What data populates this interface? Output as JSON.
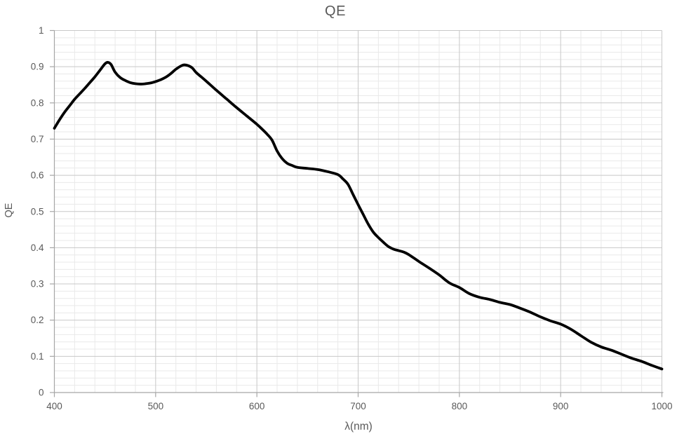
{
  "title": "QE",
  "chart_data": {
    "type": "line",
    "title": "QE",
    "xlabel": "λ(nm)",
    "ylabel": "QE",
    "xlim": [
      400,
      1000
    ],
    "ylim": [
      0,
      1
    ],
    "x_tick_labels": [
      "400",
      "500",
      "600",
      "700",
      "800",
      "900",
      "1000"
    ],
    "x_tick_values": [
      400,
      500,
      600,
      700,
      800,
      900,
      1000
    ],
    "y_tick_labels": [
      "0",
      "0.1",
      "0.2",
      "0.3",
      "0.4",
      "0.5",
      "0.6",
      "0.7",
      "0.8",
      "0.9",
      "1"
    ],
    "y_tick_values": [
      0,
      0.1,
      0.2,
      0.3,
      0.4,
      0.5,
      0.6,
      0.7,
      0.8,
      0.9,
      1
    ],
    "x_minor_step": 20,
    "y_minor_step": 0.02,
    "grid": "major and minor, both axes",
    "legend": "none",
    "series": [
      {
        "name": "QE",
        "color": "#000000",
        "smooth": true,
        "points": [
          [
            400,
            0.73
          ],
          [
            405,
            0.753
          ],
          [
            410,
            0.774
          ],
          [
            415,
            0.792
          ],
          [
            420,
            0.81
          ],
          [
            425,
            0.825
          ],
          [
            430,
            0.84
          ],
          [
            435,
            0.856
          ],
          [
            440,
            0.872
          ],
          [
            445,
            0.89
          ],
          [
            450,
            0.908
          ],
          [
            453,
            0.912
          ],
          [
            456,
            0.906
          ],
          [
            460,
            0.885
          ],
          [
            465,
            0.87
          ],
          [
            470,
            0.862
          ],
          [
            475,
            0.856
          ],
          [
            480,
            0.853
          ],
          [
            485,
            0.852
          ],
          [
            490,
            0.853
          ],
          [
            495,
            0.855
          ],
          [
            500,
            0.859
          ],
          [
            505,
            0.864
          ],
          [
            510,
            0.871
          ],
          [
            515,
            0.881
          ],
          [
            520,
            0.893
          ],
          [
            525,
            0.902
          ],
          [
            528,
            0.905
          ],
          [
            532,
            0.903
          ],
          [
            536,
            0.897
          ],
          [
            540,
            0.884
          ],
          [
            545,
            0.872
          ],
          [
            550,
            0.86
          ],
          [
            560,
            0.835
          ],
          [
            570,
            0.811
          ],
          [
            580,
            0.787
          ],
          [
            590,
            0.764
          ],
          [
            600,
            0.741
          ],
          [
            605,
            0.728
          ],
          [
            610,
            0.714
          ],
          [
            615,
            0.697
          ],
          [
            620,
            0.667
          ],
          [
            625,
            0.646
          ],
          [
            630,
            0.633
          ],
          [
            635,
            0.627
          ],
          [
            640,
            0.622
          ],
          [
            650,
            0.619
          ],
          [
            660,
            0.616
          ],
          [
            670,
            0.61
          ],
          [
            680,
            0.602
          ],
          [
            685,
            0.59
          ],
          [
            690,
            0.575
          ],
          [
            695,
            0.547
          ],
          [
            700,
            0.519
          ],
          [
            705,
            0.492
          ],
          [
            710,
            0.465
          ],
          [
            715,
            0.443
          ],
          [
            720,
            0.428
          ],
          [
            725,
            0.415
          ],
          [
            730,
            0.403
          ],
          [
            735,
            0.396
          ],
          [
            740,
            0.392
          ],
          [
            745,
            0.388
          ],
          [
            750,
            0.381
          ],
          [
            760,
            0.362
          ],
          [
            770,
            0.344
          ],
          [
            780,
            0.325
          ],
          [
            790,
            0.303
          ],
          [
            800,
            0.29
          ],
          [
            810,
            0.273
          ],
          [
            820,
            0.263
          ],
          [
            830,
            0.257
          ],
          [
            840,
            0.249
          ],
          [
            850,
            0.243
          ],
          [
            860,
            0.233
          ],
          [
            870,
            0.222
          ],
          [
            880,
            0.209
          ],
          [
            890,
            0.198
          ],
          [
            900,
            0.189
          ],
          [
            910,
            0.175
          ],
          [
            920,
            0.157
          ],
          [
            930,
            0.139
          ],
          [
            940,
            0.126
          ],
          [
            950,
            0.117
          ],
          [
            960,
            0.106
          ],
          [
            970,
            0.095
          ],
          [
            980,
            0.086
          ],
          [
            990,
            0.075
          ],
          [
            1000,
            0.065
          ]
        ]
      }
    ],
    "colors": {
      "background": "#ffffff",
      "line": "#000000",
      "label_text": "#595959",
      "axis_line": "#a6a6a6",
      "major_grid": "#c8c8c8",
      "minor_grid": "#e9e9e9"
    }
  }
}
